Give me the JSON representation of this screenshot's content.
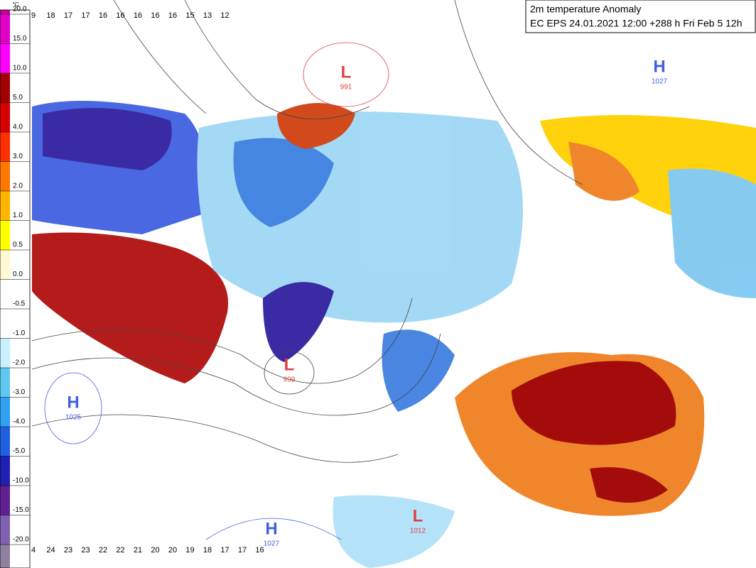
{
  "title_box": {
    "line1": "2m temperature Anomaly",
    "line2": "EC EPS 24.01.2021 12:00 +288 h Fri Feb 5 12h"
  },
  "colorbar": {
    "unit": "°C",
    "labels": [
      "20.0",
      "15.0",
      "10.0",
      "5.0",
      "4.0",
      "3.0",
      "2.0",
      "1.0",
      "0.5",
      "0.0",
      "-0.5",
      "-1.0",
      "-2.0",
      "-3.0",
      "-4.0",
      "-5.0",
      "-10.0",
      "-15.0",
      "-20.0"
    ],
    "colors": [
      "#c8009c",
      "#e000c8",
      "#ff00ff",
      "#a00000",
      "#d80000",
      "#ff3000",
      "#ff7800",
      "#ffb400",
      "#ffff00",
      "#fff8d0",
      "#ffffff",
      "#ffffff",
      "#c8f0ff",
      "#60c8f0",
      "#30a0f0",
      "#2060e0",
      "#2020b0",
      "#602090",
      "#8060b0",
      "#9080a0"
    ]
  },
  "pressure_centers": [
    {
      "letter": "L",
      "value": "991",
      "color": "#e04040"
    },
    {
      "letter": "L",
      "value": "999",
      "color": "#e04040"
    },
    {
      "letter": "H",
      "value": "1025",
      "color": "#4060e0"
    },
    {
      "letter": "H",
      "value": "1027",
      "color": "#4060e0"
    },
    {
      "letter": "H",
      "value": "1027",
      "color": "#4060e0"
    },
    {
      "letter": "L",
      "value": "1012",
      "color": "#e04040"
    }
  ],
  "grid_rows": [
    [
      9,
      18,
      17,
      17,
      16,
      16,
      16,
      16,
      16,
      15,
      13,
      12
    ],
    [
      4,
      24,
      23,
      23,
      22,
      22,
      21,
      20,
      20,
      19,
      18,
      17,
      17,
      16
    ]
  ]
}
